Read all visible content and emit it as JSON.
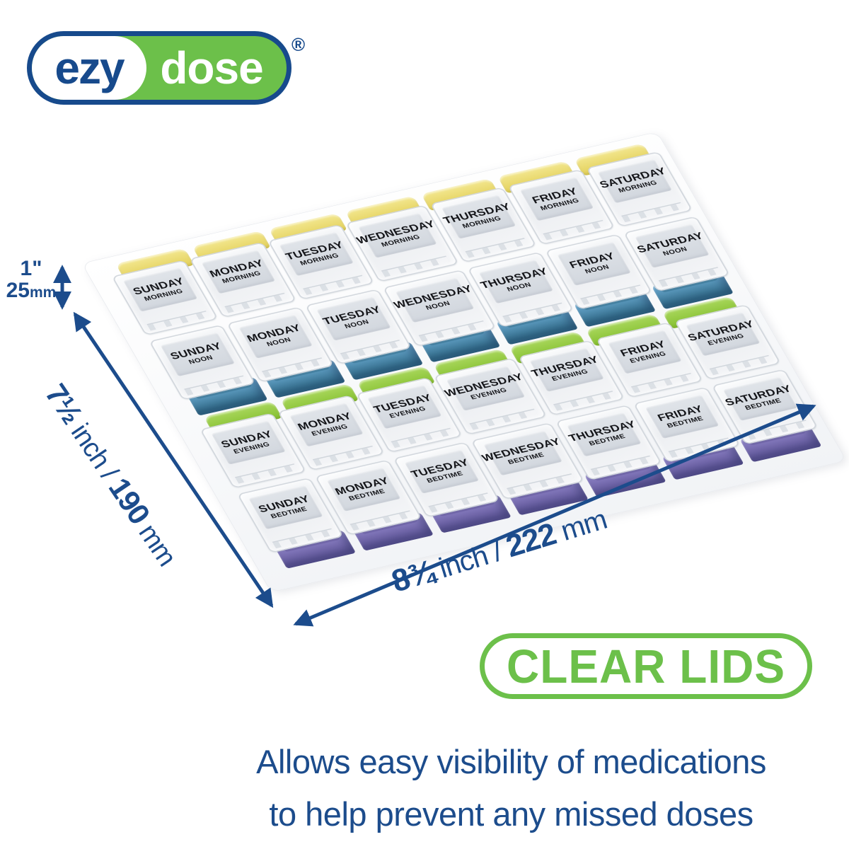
{
  "logo": {
    "ezy": "ezy",
    "dose": "dose",
    "registered": "®"
  },
  "organizer": {
    "days": [
      "SUNDAY",
      "MONDAY",
      "TUESDAY",
      "WEDNESDAY",
      "THURSDAY",
      "FRIDAY",
      "SATURDAY"
    ],
    "periods": [
      {
        "name": "MORNING",
        "color_light": "#f3e78f",
        "color_dark": "#e2cf58"
      },
      {
        "name": "NOON",
        "color_light": "#6fadd6",
        "color_dark": "#35718e"
      },
      {
        "name": "EVENING",
        "color_light": "#a9d75c",
        "color_dark": "#84bf2f"
      },
      {
        "name": "BEDTIME",
        "color_light": "#9388cc",
        "color_dark": "#645a9d"
      }
    ],
    "decks": [
      {
        "tabs": 0,
        "lids": [
          0,
          1
        ],
        "bins": 1
      },
      {
        "tabs": 2,
        "lids": [
          2,
          3
        ],
        "bins": 3
      }
    ]
  },
  "dimensions": {
    "height": {
      "inches": "1\"",
      "mm_value": "25",
      "mm_unit": "mm"
    },
    "depth": {
      "inches_value": "7½",
      "separator": " inch / ",
      "mm_value": "190",
      "mm_unit": " mm"
    },
    "width": {
      "inches_value": "8¾",
      "separator": " inch / ",
      "mm_value": "222",
      "mm_unit": " mm"
    }
  },
  "badge": {
    "label": "CLEAR LIDS"
  },
  "caption": {
    "line1": "Allows easy visibility of medications",
    "line2": "to help prevent any missed doses"
  },
  "colors": {
    "brand_navy": "#174a8c",
    "brand_green": "#6cc04a",
    "annotation_navy": "#1c4c8c"
  }
}
